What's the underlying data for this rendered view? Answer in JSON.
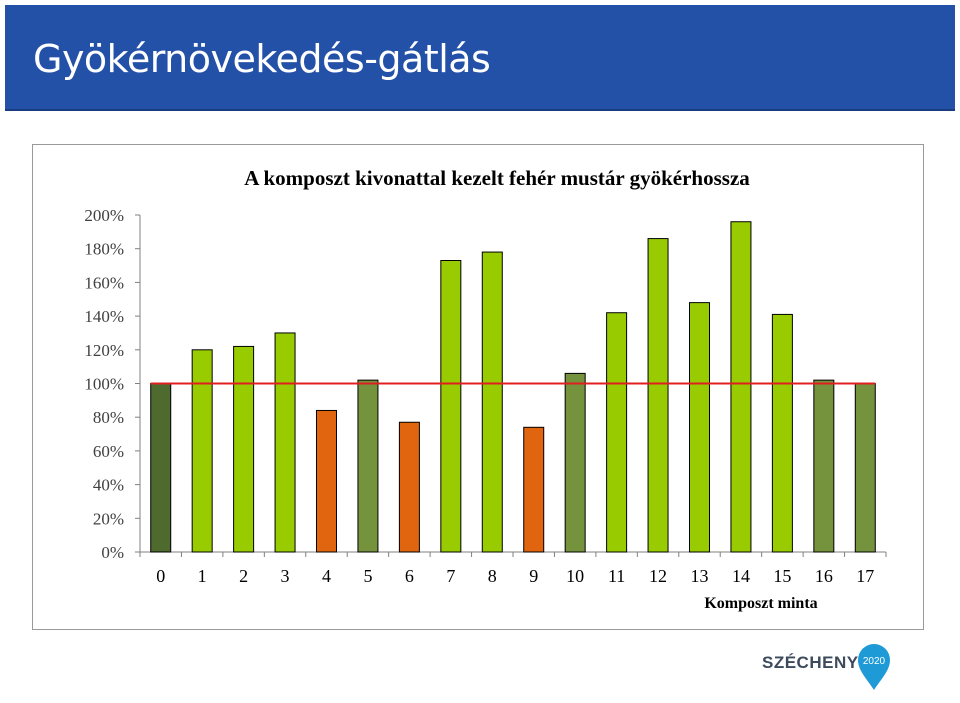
{
  "header": {
    "title": "Gyökérnövekedés-gátlás"
  },
  "logo": {
    "text": "SZÉCHENYI",
    "year": "2020"
  },
  "colors": {
    "header_bg": "#2451a8",
    "control": "#4e6a2e",
    "inhibited": "#e0650e",
    "stimulated": "#99cc00",
    "neutral": "#75923c",
    "reference_line": "#e02020"
  },
  "chart_data": {
    "type": "bar",
    "title": "A komposzt kivonattal kezelt fehér mustár gyökérhossza",
    "xlabel": "Komposzt minta",
    "ylabel": "",
    "ylim": [
      0,
      2.0
    ],
    "yticks": [
      "0%",
      "20%",
      "40%",
      "60%",
      "80%",
      "100%",
      "120%",
      "140%",
      "160%",
      "180%",
      "200%"
    ],
    "categories": [
      "0",
      "1",
      "2",
      "3",
      "4",
      "5",
      "6",
      "7",
      "8",
      "9",
      "10",
      "11",
      "12",
      "13",
      "14",
      "15",
      "16",
      "17"
    ],
    "values": [
      1.0,
      1.2,
      1.22,
      1.3,
      0.84,
      1.02,
      0.77,
      1.73,
      1.78,
      0.74,
      1.06,
      1.42,
      1.86,
      1.48,
      1.96,
      1.41,
      1.02,
      1.0
    ],
    "bar_groups": [
      "control",
      "stimulated",
      "stimulated",
      "stimulated",
      "inhibited",
      "neutral",
      "inhibited",
      "stimulated",
      "stimulated",
      "inhibited",
      "neutral",
      "stimulated",
      "stimulated",
      "stimulated",
      "stimulated",
      "stimulated",
      "neutral",
      "neutral"
    ],
    "reference_line": 1.0,
    "grid": false,
    "legend": "none"
  }
}
